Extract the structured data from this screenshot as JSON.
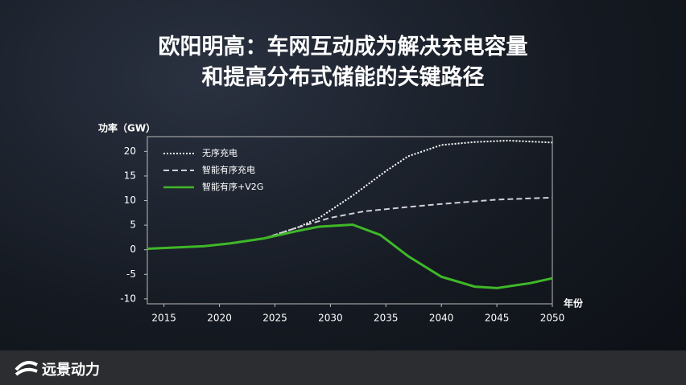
{
  "header": {
    "title": [
      "欧阳明高：车网互动成为解决充电容量",
      "和提高分布式储能的关键路径"
    ]
  },
  "footer": {
    "logo": "远景动力"
  },
  "chart_data": {
    "type": "line",
    "y_label": "功率（GW）",
    "x_label": "年份",
    "xlim": [
      2013.5,
      2050
    ],
    "xticks": [
      2015,
      2020,
      2025,
      2030,
      2035,
      2040,
      2045,
      2050
    ],
    "ylim": [
      -11,
      23
    ],
    "yticks": [
      -10,
      -5,
      0,
      5,
      10,
      15,
      20
    ],
    "grid": false,
    "legend": "upper left",
    "series": [
      {
        "name": "无序充电",
        "color": "#ffffff",
        "dash": "dotted",
        "x": [
          2024,
          2027,
          2029,
          2032,
          2035,
          2037,
          2040,
          2043,
          2046,
          2048,
          2050
        ],
        "values": [
          2.3,
          4.5,
          6.5,
          11,
          16,
          19,
          21.3,
          21.9,
          22.2,
          22,
          21.8
        ]
      },
      {
        "name": "智能有序充电",
        "color": "#d0d0d8",
        "dash": "dashed",
        "x": [
          2024,
          2027,
          2030,
          2033,
          2037,
          2040,
          2045,
          2050
        ],
        "values": [
          2.3,
          4.5,
          6.5,
          7.8,
          8.7,
          9.3,
          10.2,
          10.6
        ]
      },
      {
        "name": "智能有序+V2G",
        "color": "#3fb828",
        "dash": "solid",
        "x": [
          2013.5,
          2018.5,
          2021,
          2024,
          2027,
          2029,
          2032,
          2034.5,
          2037,
          2040,
          2043,
          2045,
          2048,
          2050
        ],
        "values": [
          0.2,
          0.7,
          1.3,
          2.3,
          3.8,
          4.7,
          5.1,
          3,
          -1.3,
          -5.5,
          -7.5,
          -7.8,
          -6.8,
          -5.8
        ]
      }
    ]
  }
}
